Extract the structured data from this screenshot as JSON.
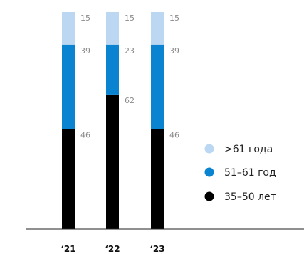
{
  "chart_data": {
    "type": "bar",
    "stacked": true,
    "categories": [
      "‘21",
      "‘22",
      "‘23"
    ],
    "series": [
      {
        "name": "35–50 лет",
        "values": [
          46,
          62,
          46
        ],
        "color": "#000000"
      },
      {
        "name": "51–61 год",
        "values": [
          39,
          23,
          39
        ],
        "color": "#0a84d0"
      },
      {
        "name": ">61 года",
        "values": [
          15,
          15,
          15
        ],
        "color": "#bcd7f1"
      }
    ],
    "ylim": [
      0,
      100
    ],
    "grid": false,
    "legend_position": "right"
  }
}
